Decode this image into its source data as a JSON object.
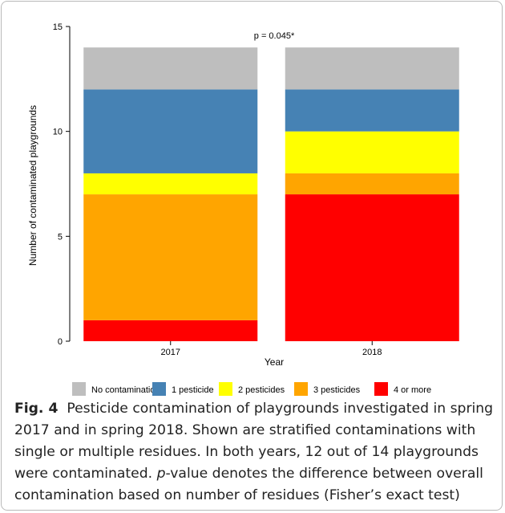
{
  "chart_data": {
    "type": "bar",
    "stacked": true,
    "categories": [
      "2017",
      "2018"
    ],
    "xlabel": "Year",
    "ylabel": "Number of contaminated playgrounds",
    "ylim": [
      0,
      15
    ],
    "yticks": [
      "0",
      "5",
      "10",
      "15"
    ],
    "series": [
      {
        "name": "4 or more",
        "color": "#ff0000",
        "values": [
          1,
          7
        ]
      },
      {
        "name": "3 pesticides",
        "color": "#ffa500",
        "values": [
          6,
          1
        ]
      },
      {
        "name": "2 pesticides",
        "color": "#ffff00",
        "values": [
          1,
          2
        ]
      },
      {
        "name": "1 pesticide",
        "color": "#4682b4",
        "values": [
          4,
          2
        ]
      },
      {
        "name": "No contamination",
        "color": "#bebebe",
        "values": [
          2,
          2
        ]
      }
    ],
    "legend_order": [
      "No contamination",
      "1 pesticide",
      "2 pesticides",
      "3 pesticides",
      "4 or more"
    ],
    "legend_position": "bottom",
    "annotation": "p = 0.045*",
    "grid": false
  },
  "caption": {
    "fig_label": "Fig. 4",
    "text_before_p": "Pesticide contamination of playgrounds investigated in spring 2017 and in spring 2018. Shown are stratified contaminations with single or multiple residues. In both years, 12 out of 14 playgrounds were contaminated. ",
    "p_symbol": "p",
    "text_after_p": "-value denotes the difference between overall contamination based on number of residues (Fisher’s exact test)"
  }
}
